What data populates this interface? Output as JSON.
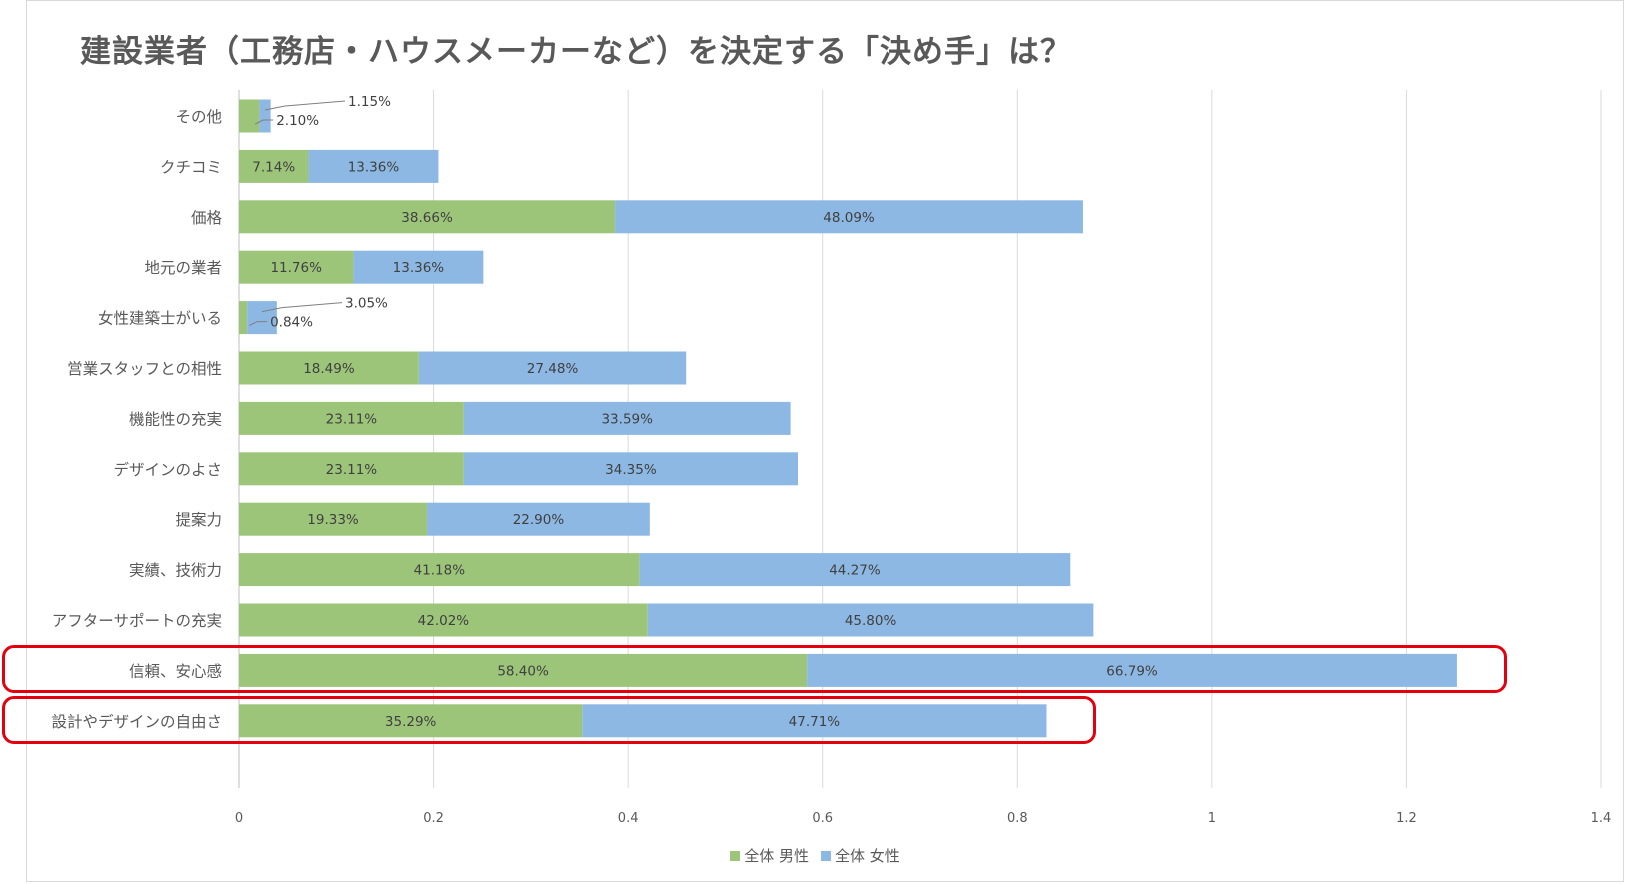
{
  "chart_data": {
    "type": "bar",
    "orientation": "horizontal",
    "stacked": true,
    "title": "建設業者（工務店・ハウスメーカーなど）を決定する「決め手」は？",
    "categories": [
      "その他",
      "クチコミ",
      "価格",
      "地元の業者",
      "女性建築士がいる",
      "営業スタッフとの相性",
      "機能性の充実",
      "デザインのよさ",
      "提案力",
      "実績、技術力",
      "アフターサポートの充実",
      "信頼、安心感",
      "設計やデザインの自由さ"
    ],
    "series": [
      {
        "name": "全体 男性",
        "color": "#9dc57a",
        "values": [
          0.021,
          0.0714,
          0.3866,
          0.1176,
          0.0084,
          0.1849,
          0.2311,
          0.2311,
          0.1933,
          0.4118,
          0.4202,
          0.584,
          0.3529
        ],
        "labels": [
          "2.10%",
          "7.14%",
          "38.66%",
          "11.76%",
          "0.84%",
          "18.49%",
          "23.11%",
          "23.11%",
          "19.33%",
          "41.18%",
          "42.02%",
          "58.40%",
          "35.29%"
        ]
      },
      {
        "name": "全体 女性",
        "color": "#8db8e3",
        "values": [
          0.0115,
          0.1336,
          0.4809,
          0.1336,
          0.0305,
          0.2748,
          0.3359,
          0.3435,
          0.229,
          0.4427,
          0.458,
          0.6679,
          0.4771
        ],
        "labels": [
          "1.15%",
          "13.36%",
          "48.09%",
          "13.36%",
          "3.05%",
          "27.48%",
          "33.59%",
          "34.35%",
          "22.90%",
          "44.27%",
          "45.80%",
          "66.79%",
          "47.71%"
        ]
      }
    ],
    "xlim": [
      0,
      1.4
    ],
    "xticks": [
      0,
      0.2,
      0.4,
      0.6,
      0.8,
      1,
      1.2,
      1.4
    ],
    "xtick_labels": [
      "0",
      "0.2",
      "0.4",
      "0.6",
      "0.8",
      "1",
      "1.2",
      "1.4"
    ],
    "grid": true,
    "legend_position": "bottom",
    "highlighted_categories": [
      "信頼、安心感",
      "設計やデザインの自由さ"
    ],
    "highlight_color": "#e3000f"
  }
}
